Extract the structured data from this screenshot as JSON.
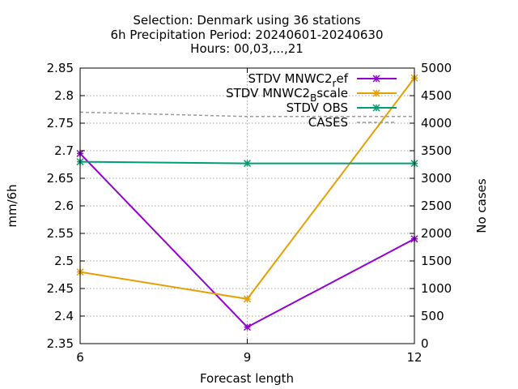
{
  "chart_data": {
    "type": "line",
    "title_lines": [
      "Selection: Denmark using     36 stations",
      "6h Precipitation   Period: 20240601-20240630",
      "Hours: 00,03,...,21"
    ],
    "xlabel": "Forecast length",
    "ylabel": "mm/6h",
    "y2label": "No cases",
    "x": [
      6,
      9,
      12
    ],
    "xlim": [
      6,
      12
    ],
    "ylim": [
      2.35,
      2.85
    ],
    "y2lim": [
      0,
      5000
    ],
    "x_ticks": [
      "6",
      "9",
      "12"
    ],
    "y_ticks": [
      "2.35",
      "2.4",
      "2.45",
      "2.5",
      "2.55",
      "2.6",
      "2.65",
      "2.7",
      "2.75",
      "2.8",
      "2.85"
    ],
    "y2_ticks": [
      "0",
      "500",
      "1000",
      "1500",
      "2000",
      "2500",
      "3000",
      "3500",
      "4000",
      "4500",
      "5000"
    ],
    "grid": true,
    "legend_position": "top-right",
    "series": [
      {
        "name": "STDV MNWC2",
        "name_sub": "r",
        "name_rest": "ef",
        "axis": "y",
        "color": "#9400d3",
        "marker": "x-star",
        "values": [
          2.695,
          2.38,
          2.54
        ]
      },
      {
        "name": "STDV MNWC2",
        "name_sub": "B",
        "name_rest": "scale",
        "axis": "y",
        "color": "#e69f00",
        "marker": "x-star",
        "values": [
          2.48,
          2.431,
          2.832
        ]
      },
      {
        "name": "STDV OBS",
        "name_sub": "",
        "name_rest": "",
        "axis": "y",
        "color": "#009e73",
        "marker": "x-star",
        "values": [
          2.68,
          2.677,
          2.677
        ]
      },
      {
        "name": "CASES",
        "name_sub": "",
        "name_rest": "",
        "axis": "y2",
        "color": "#999999",
        "marker": "none",
        "dashed": true,
        "values": [
          4200,
          4120,
          4120
        ]
      }
    ]
  }
}
